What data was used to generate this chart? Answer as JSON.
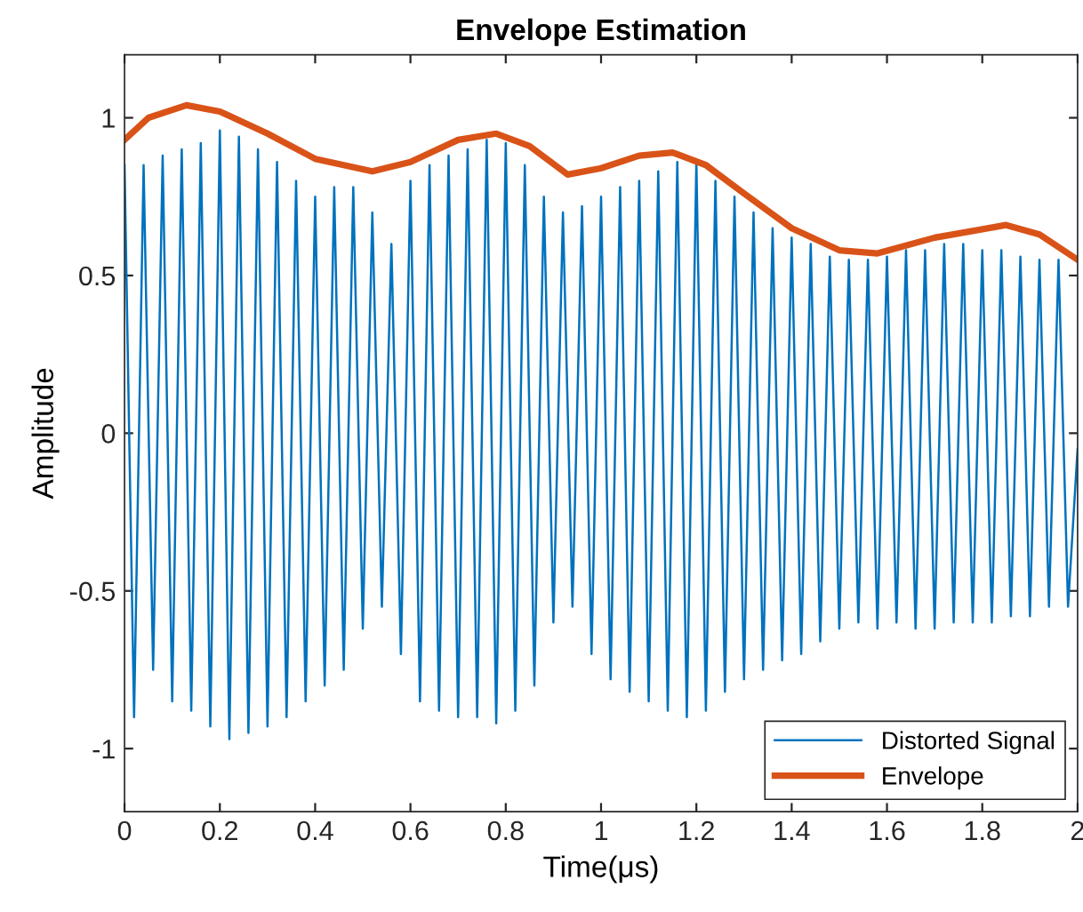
{
  "chart_data": {
    "type": "line",
    "title": "Envelope Estimation",
    "xlabel": "Time(μs)",
    "ylabel": "Amplitude",
    "xlim": [
      0,
      2
    ],
    "ylim": [
      -1.2,
      1.2
    ],
    "xticks": [
      0,
      0.2,
      0.4,
      0.6,
      0.8,
      1,
      1.2,
      1.4,
      1.6,
      1.8,
      2
    ],
    "yticks": [
      -1,
      -0.5,
      0,
      0.5,
      1
    ],
    "grid": false,
    "legend": "bottom right",
    "marker": "none",
    "line_style": "solid",
    "series": [
      {
        "name": "Distorted Signal",
        "color": "#0072bd",
        "x": [
          0,
          0.02,
          0.04,
          0.06,
          0.08,
          0.1,
          0.12,
          0.14,
          0.16,
          0.18,
          0.2,
          0.22,
          0.24,
          0.26,
          0.28,
          0.3,
          0.32,
          0.34,
          0.36,
          0.38,
          0.4,
          0.42,
          0.44,
          0.46,
          0.48,
          0.5,
          0.52,
          0.54,
          0.56,
          0.58,
          0.6,
          0.62,
          0.64,
          0.66,
          0.68,
          0.7,
          0.72,
          0.74,
          0.76,
          0.78,
          0.8,
          0.82,
          0.84,
          0.86,
          0.88,
          0.9,
          0.92,
          0.94,
          0.96,
          0.98,
          1,
          1.02,
          1.04,
          1.06,
          1.08,
          1.1,
          1.12,
          1.14,
          1.16,
          1.18,
          1.2,
          1.22,
          1.24,
          1.26,
          1.28,
          1.3,
          1.32,
          1.34,
          1.36,
          1.38,
          1.4,
          1.42,
          1.44,
          1.46,
          1.48,
          1.5,
          1.52,
          1.54,
          1.56,
          1.58,
          1.6,
          1.62,
          1.64,
          1.66,
          1.68,
          1.7,
          1.72,
          1.74,
          1.76,
          1.78,
          1.8,
          1.82,
          1.84,
          1.86,
          1.88,
          1.9,
          1.92,
          1.94,
          1.96,
          1.98,
          2
        ],
        "values": [
          0.85,
          -0.9,
          0.85,
          -0.75,
          0.88,
          -0.85,
          0.9,
          -0.88,
          0.92,
          -0.93,
          0.96,
          -0.97,
          0.94,
          -0.95,
          0.9,
          -0.93,
          0.86,
          -0.9,
          0.8,
          -0.85,
          0.75,
          -0.8,
          0.78,
          -0.75,
          0.78,
          -0.62,
          0.7,
          -0.55,
          0.6,
          -0.7,
          0.8,
          -0.85,
          0.85,
          -0.88,
          0.88,
          -0.9,
          0.9,
          -0.9,
          0.93,
          -0.92,
          0.92,
          -0.88,
          0.85,
          -0.8,
          0.75,
          -0.6,
          0.7,
          -0.55,
          0.72,
          -0.7,
          0.75,
          -0.78,
          0.78,
          -0.82,
          0.8,
          -0.85,
          0.83,
          -0.88,
          0.86,
          -0.9,
          0.86,
          -0.88,
          0.8,
          -0.82,
          0.75,
          -0.78,
          0.7,
          -0.75,
          0.65,
          -0.72,
          0.62,
          -0.7,
          0.6,
          -0.66,
          0.56,
          -0.62,
          0.55,
          -0.6,
          0.55,
          -0.62,
          0.56,
          -0.6,
          0.58,
          -0.62,
          0.58,
          -0.62,
          0.6,
          -0.6,
          0.6,
          -0.6,
          0.58,
          -0.6,
          0.58,
          -0.58,
          0.56,
          -0.58,
          0.55,
          -0.55,
          0.55,
          -0.55,
          -0.05
        ]
      },
      {
        "name": "Envelope",
        "color": "#d95319",
        "x": [
          0,
          0.05,
          0.13,
          0.2,
          0.3,
          0.4,
          0.52,
          0.6,
          0.7,
          0.78,
          0.85,
          0.93,
          1,
          1.08,
          1.15,
          1.22,
          1.3,
          1.4,
          1.5,
          1.58,
          1.7,
          1.85,
          1.92,
          2
        ],
        "values": [
          0.93,
          1.0,
          1.04,
          1.02,
          0.95,
          0.87,
          0.83,
          0.86,
          0.93,
          0.95,
          0.91,
          0.82,
          0.84,
          0.88,
          0.89,
          0.85,
          0.76,
          0.65,
          0.58,
          0.57,
          0.62,
          0.66,
          0.63,
          0.55
        ]
      }
    ]
  }
}
